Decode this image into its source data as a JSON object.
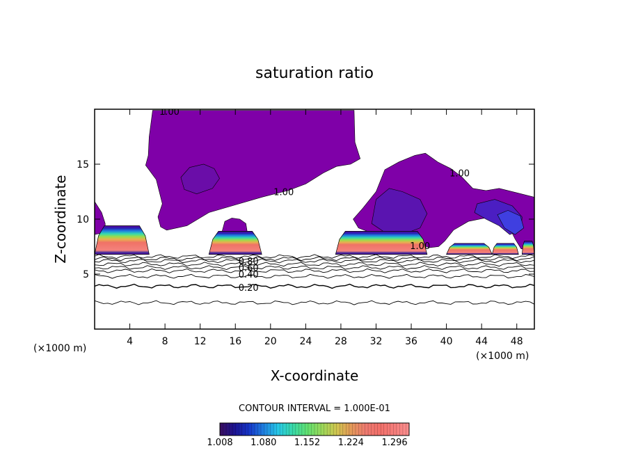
{
  "chart_data": {
    "type": "contour",
    "title": "saturation ratio",
    "xlabel": "X-coordinate",
    "ylabel": "Z-coordinate",
    "x_unit": "(×1000 m)",
    "z_unit": "(×1000 m)",
    "xlim": [
      0,
      50
    ],
    "ylim": [
      0,
      20
    ],
    "x_ticks": [
      4,
      8,
      12,
      16,
      20,
      24,
      28,
      32,
      36,
      40,
      44,
      48
    ],
    "y_ticks": [
      5,
      10,
      15
    ],
    "x_tick_labels": [
      "4",
      "8",
      "12",
      "16",
      "20",
      "24",
      "28",
      "32",
      "36",
      "40",
      "44",
      "48"
    ],
    "y_tick_labels": [
      "5",
      "10",
      "15"
    ],
    "contour_interval_text": "CONTOUR INTERVAL = 1.000E-01",
    "contour_labels": [
      {
        "text": "1.00",
        "x": 8.5,
        "y": 19.8
      },
      {
        "text": "1.00",
        "x": 21.5,
        "y": 12.5
      },
      {
        "text": "1.00",
        "x": 41.5,
        "y": 14.2
      },
      {
        "text": "1.00",
        "x": 37.0,
        "y": 7.6
      },
      {
        "text": "0.80",
        "x": 17.5,
        "y": 6.2
      },
      {
        "text": "0.60",
        "x": 17.5,
        "y": 5.6
      },
      {
        "text": "0.40",
        "x": 17.5,
        "y": 5.0
      },
      {
        "text": "0.20",
        "x": 17.5,
        "y": 3.8
      }
    ],
    "contour_lines": [
      {
        "level": 0.2,
        "z": 3.9
      },
      {
        "level": 0.3,
        "z": 4.8
      },
      {
        "level": 0.4,
        "z": 5.3
      },
      {
        "level": 0.5,
        "z": 5.6
      },
      {
        "level": 0.6,
        "z": 5.9
      },
      {
        "level": 0.7,
        "z": 6.2
      },
      {
        "level": 0.8,
        "z": 6.4
      },
      {
        "level": 0.9,
        "z": 6.6
      },
      {
        "level": 0.1,
        "z": 2.4
      }
    ],
    "colorbar": {
      "min": 1.008,
      "max": 1.32,
      "tick_values": [
        1.008,
        1.08,
        1.152,
        1.224,
        1.296
      ],
      "tick_labels": [
        "1.008",
        "1.080",
        "1.152",
        "1.224",
        "1.296"
      ],
      "colors": [
        "#3a0e5e",
        "#1c1390",
        "#1535c8",
        "#1e7fe0",
        "#27c8e6",
        "#38d8a8",
        "#60e070",
        "#9ad85a",
        "#cfc650",
        "#e39a58",
        "#ee7a70",
        "#f2706a",
        "#f67e7c",
        "#fa8e8e"
      ]
    },
    "regions": [
      {
        "name": "upper-supersaturated-region-left",
        "color": "#7f00a8",
        "polygon": [
          [
            6.6,
            19.9
          ],
          [
            29.5,
            19.9
          ],
          [
            29.6,
            17
          ],
          [
            30.2,
            15.5
          ],
          [
            29.1,
            15
          ],
          [
            27.5,
            14.8
          ],
          [
            26,
            14.2
          ],
          [
            24,
            13.2
          ],
          [
            22,
            12.6
          ],
          [
            19,
            12
          ],
          [
            16,
            11.3
          ],
          [
            13,
            10.6
          ],
          [
            10.5,
            9.4
          ],
          [
            8.2,
            9.0
          ],
          [
            7.5,
            9.3
          ],
          [
            7.2,
            10.2
          ],
          [
            7.7,
            11.4
          ],
          [
            7.0,
            13.6
          ],
          [
            5.8,
            14.9
          ],
          [
            6.1,
            15.8
          ],
          [
            6.2,
            17.5
          ]
        ]
      },
      {
        "name": "upper-supersaturated-region-right",
        "color": "#7f00a8",
        "polygon": [
          [
            29.4,
            10.0
          ],
          [
            30.5,
            11.0
          ],
          [
            32,
            12.5
          ],
          [
            33,
            14.5
          ],
          [
            34.6,
            15.2
          ],
          [
            36.4,
            15.8
          ],
          [
            37.6,
            16.0
          ],
          [
            39,
            15.2
          ],
          [
            40.5,
            14.6
          ],
          [
            41.8,
            13.8
          ],
          [
            43,
            12.8
          ],
          [
            44.5,
            12.6
          ],
          [
            46,
            12.8
          ],
          [
            48,
            12.4
          ],
          [
            50,
            12.0
          ],
          [
            50,
            7.2
          ],
          [
            48.5,
            7.3
          ],
          [
            47.8,
            8.2
          ],
          [
            47,
            9.5
          ],
          [
            46.4,
            10.0
          ],
          [
            45,
            10.2
          ],
          [
            42.5,
            9.8
          ],
          [
            40.8,
            9.0
          ],
          [
            39.8,
            8.0
          ],
          [
            39.1,
            7.5
          ],
          [
            38,
            7.4
          ],
          [
            37.0,
            7.8
          ],
          [
            35.5,
            8.2
          ],
          [
            33,
            8.6
          ],
          [
            31,
            8.9
          ],
          [
            30,
            9.2
          ]
        ]
      },
      {
        "name": "inner-moist-core-1",
        "color": "#6a0da8",
        "polygon": [
          [
            9.8,
            13.8
          ],
          [
            10.8,
            14.7
          ],
          [
            12.4,
            15.0
          ],
          [
            13.6,
            14.6
          ],
          [
            14.2,
            13.7
          ],
          [
            13.4,
            12.8
          ],
          [
            11.6,
            12.3
          ],
          [
            10.2,
            12.7
          ]
        ]
      },
      {
        "name": "inner-moist-core-2",
        "color": "#5a14b0",
        "polygon": [
          [
            32,
            11.8
          ],
          [
            33.5,
            12.8
          ],
          [
            35,
            12.5
          ],
          [
            37,
            11.8
          ],
          [
            37.8,
            10.5
          ],
          [
            37,
            9.2
          ],
          [
            35,
            8.6
          ],
          [
            33,
            8.8
          ],
          [
            31.5,
            9.6
          ]
        ]
      },
      {
        "name": "inner-moist-core-3",
        "color": "#4b1ec2",
        "polygon": [
          [
            43.5,
            11.4
          ],
          [
            45.5,
            11.8
          ],
          [
            47.5,
            11.2
          ],
          [
            48.6,
            10.2
          ],
          [
            48.5,
            9.0
          ],
          [
            47.2,
            8.6
          ],
          [
            46.0,
            9.4
          ],
          [
            44.5,
            10.0
          ],
          [
            43.2,
            10.6
          ]
        ]
      },
      {
        "name": "inner-moist-core-4",
        "color": "#3f3fe0",
        "polygon": [
          [
            45.8,
            10.4
          ],
          [
            47,
            10.8
          ],
          [
            48.4,
            10.3
          ],
          [
            48.8,
            9.2
          ],
          [
            47.8,
            8.6
          ],
          [
            46.6,
            9.2
          ]
        ]
      },
      {
        "name": "left-edge-plume",
        "color": "#7f00a8",
        "polygon": [
          [
            0,
            11.6
          ],
          [
            0.8,
            10.6
          ],
          [
            1.2,
            9.6
          ],
          [
            1.2,
            8.8
          ],
          [
            0,
            8.6
          ]
        ]
      },
      {
        "name": "cap-plume-16",
        "color": "#7f00a8",
        "polygon": [
          [
            14.4,
            8.6
          ],
          [
            14.8,
            9.8
          ],
          [
            15.6,
            10.1
          ],
          [
            16.5,
            10.0
          ],
          [
            17.2,
            9.6
          ],
          [
            17.4,
            8.6
          ]
        ]
      }
    ],
    "cloud_banks": [
      {
        "name": "cloud-bank-0-5",
        "x0": 0.0,
        "x1": 6.2,
        "top": 9.4,
        "base": 6.8
      },
      {
        "name": "cloud-bank-13-19",
        "x0": 13.0,
        "x1": 19.0,
        "top": 8.9,
        "base": 6.8
      },
      {
        "name": "cloud-bank-28-37",
        "x0": 27.4,
        "x1": 37.8,
        "top": 8.9,
        "base": 6.8
      },
      {
        "name": "cloud-bank-40-45",
        "x0": 40.0,
        "x1": 45.2,
        "top": 7.8,
        "base": 6.8
      },
      {
        "name": "cloud-bank-45-48",
        "x0": 45.2,
        "x1": 48.2,
        "top": 7.8,
        "base": 6.8
      },
      {
        "name": "cloud-bank-49-50",
        "x0": 48.6,
        "x1": 50.0,
        "top": 8.0,
        "base": 6.8
      }
    ]
  }
}
